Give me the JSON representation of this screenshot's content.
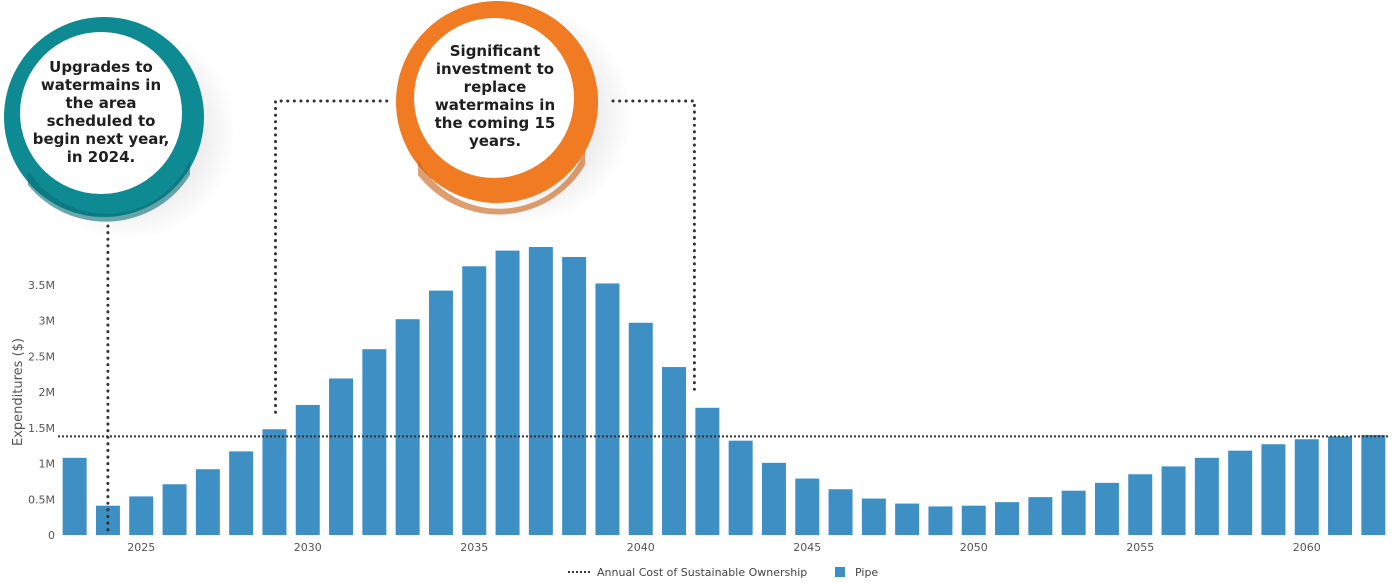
{
  "chart_data": {
    "type": "bar",
    "ylabel": "Expenditures ($)",
    "xlim": [
      2022.5,
      2062.5
    ],
    "ylim": [
      0,
      4.1
    ],
    "y_unit": "M",
    "x_ticks": [
      "2025",
      "2030",
      "2035",
      "2040",
      "2045",
      "2050",
      "2055",
      "2060"
    ],
    "y_ticks": [
      "0",
      "0.5M",
      "1M",
      "1.5M",
      "2M",
      "2.5M",
      "3M",
      "3.5M"
    ],
    "grid": false,
    "legend_placement": "bottom-center",
    "colors": {
      "bar": "#3d8fc4",
      "line": "#333333"
    },
    "series": [
      {
        "name": "Pipe",
        "x": [
          2023,
          2024,
          2025,
          2026,
          2027,
          2028,
          2029,
          2030,
          2031,
          2032,
          2033,
          2034,
          2035,
          2036,
          2037,
          2038,
          2039,
          2040,
          2041,
          2042,
          2043,
          2044,
          2045,
          2046,
          2047,
          2048,
          2049,
          2050,
          2051,
          2052,
          2053,
          2054,
          2055,
          2056,
          2057,
          2058,
          2059,
          2060,
          2061,
          2062
        ],
        "values": [
          1.08,
          0.41,
          0.54,
          0.71,
          0.92,
          1.17,
          1.48,
          1.82,
          2.19,
          2.6,
          3.02,
          3.42,
          3.76,
          3.98,
          4.03,
          3.89,
          3.52,
          2.97,
          2.35,
          1.78,
          1.32,
          1.01,
          0.79,
          0.64,
          0.51,
          0.44,
          0.4,
          0.41,
          0.46,
          0.53,
          0.62,
          0.73,
          0.85,
          0.96,
          1.08,
          1.18,
          1.27,
          1.34,
          1.38,
          1.4
        ]
      },
      {
        "name": "Annual Cost of Sustainable Ownership",
        "type": "line",
        "value": 1.38
      }
    ],
    "annotations": [
      {
        "text": "Upgrades to watermains in the area scheduled to begin next year, in 2024.",
        "color": "#0e8a93",
        "points_to_year": 2024
      },
      {
        "text": "Significant investment to replace watermains in the coming 15 years.",
        "color": "#f07b22",
        "span_years": [
          2029,
          2042
        ]
      }
    ]
  }
}
